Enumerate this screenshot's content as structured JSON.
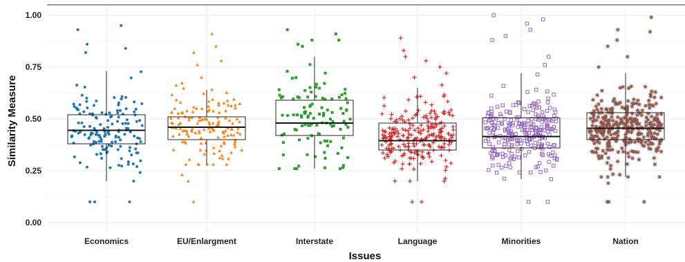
{
  "chart_data": {
    "type": "box",
    "xlabel": "Issues",
    "ylabel": "Similarity Measure",
    "ylim": [
      0,
      1
    ],
    "yticks": [
      "0.00",
      "0.25",
      "0.50",
      "0.75",
      "1.00"
    ],
    "grid": true,
    "categories": [
      "Economics",
      "EU/Enlargment",
      "Interstate",
      "Language",
      "Minorities",
      "Nation"
    ],
    "colors": [
      "#1f77b4",
      "#ff7f0e",
      "#2ca02c",
      "#d62728",
      "#9467bd",
      "#8c564b"
    ],
    "markers": [
      "circle",
      "triangle",
      "square",
      "plus",
      "square-open",
      "asterisk"
    ],
    "series": [
      {
        "q1": 0.38,
        "median": 0.445,
        "q3": 0.52,
        "whisker_low": 0.2,
        "whisker_high": 0.73,
        "n": 150,
        "center": 0.45,
        "spread": 0.14,
        "outliers": [
          0.82,
          0.84,
          0.86,
          0.93,
          0.95,
          0.1,
          0.1,
          0.1
        ]
      },
      {
        "q1": 0.4,
        "median": 0.46,
        "q3": 0.51,
        "whisker_low": 0.28,
        "whisker_high": 0.64,
        "n": 140,
        "center": 0.46,
        "spread": 0.12,
        "outliers": [
          0.7,
          0.76,
          0.78,
          0.82,
          0.85,
          0.91,
          0.2,
          0.23,
          0.1
        ]
      },
      {
        "q1": 0.42,
        "median": 0.48,
        "q3": 0.59,
        "whisker_low": 0.26,
        "whisker_high": 0.8,
        "n": 110,
        "center": 0.5,
        "spread": 0.15,
        "outliers": [
          0.86,
          0.88,
          0.93,
          0.91,
          0.88
        ]
      },
      {
        "q1": 0.35,
        "median": 0.395,
        "q3": 0.48,
        "whisker_low": 0.2,
        "whisker_high": 0.65,
        "n": 230,
        "center": 0.41,
        "spread": 0.11,
        "outliers": [
          0.7,
          0.72,
          0.75,
          0.78,
          0.8,
          0.83,
          0.89,
          0.1,
          0.1
        ]
      },
      {
        "q1": 0.36,
        "median": 0.415,
        "q3": 0.505,
        "whisker_low": 0.21,
        "whisker_high": 0.72,
        "n": 260,
        "center": 0.43,
        "spread": 0.12,
        "outliers": [
          0.76,
          0.8,
          0.88,
          0.9,
          0.93,
          0.96,
          0.98,
          1.0,
          0.1,
          0.1
        ]
      },
      {
        "q1": 0.4,
        "median": 0.455,
        "q3": 0.53,
        "whisker_low": 0.22,
        "whisker_high": 0.72,
        "n": 330,
        "center": 0.46,
        "spread": 0.11,
        "outliers": [
          0.75,
          0.8,
          0.85,
          0.88,
          0.92,
          0.93,
          0.99,
          0.19,
          0.1,
          0.1,
          0.1
        ]
      }
    ]
  }
}
